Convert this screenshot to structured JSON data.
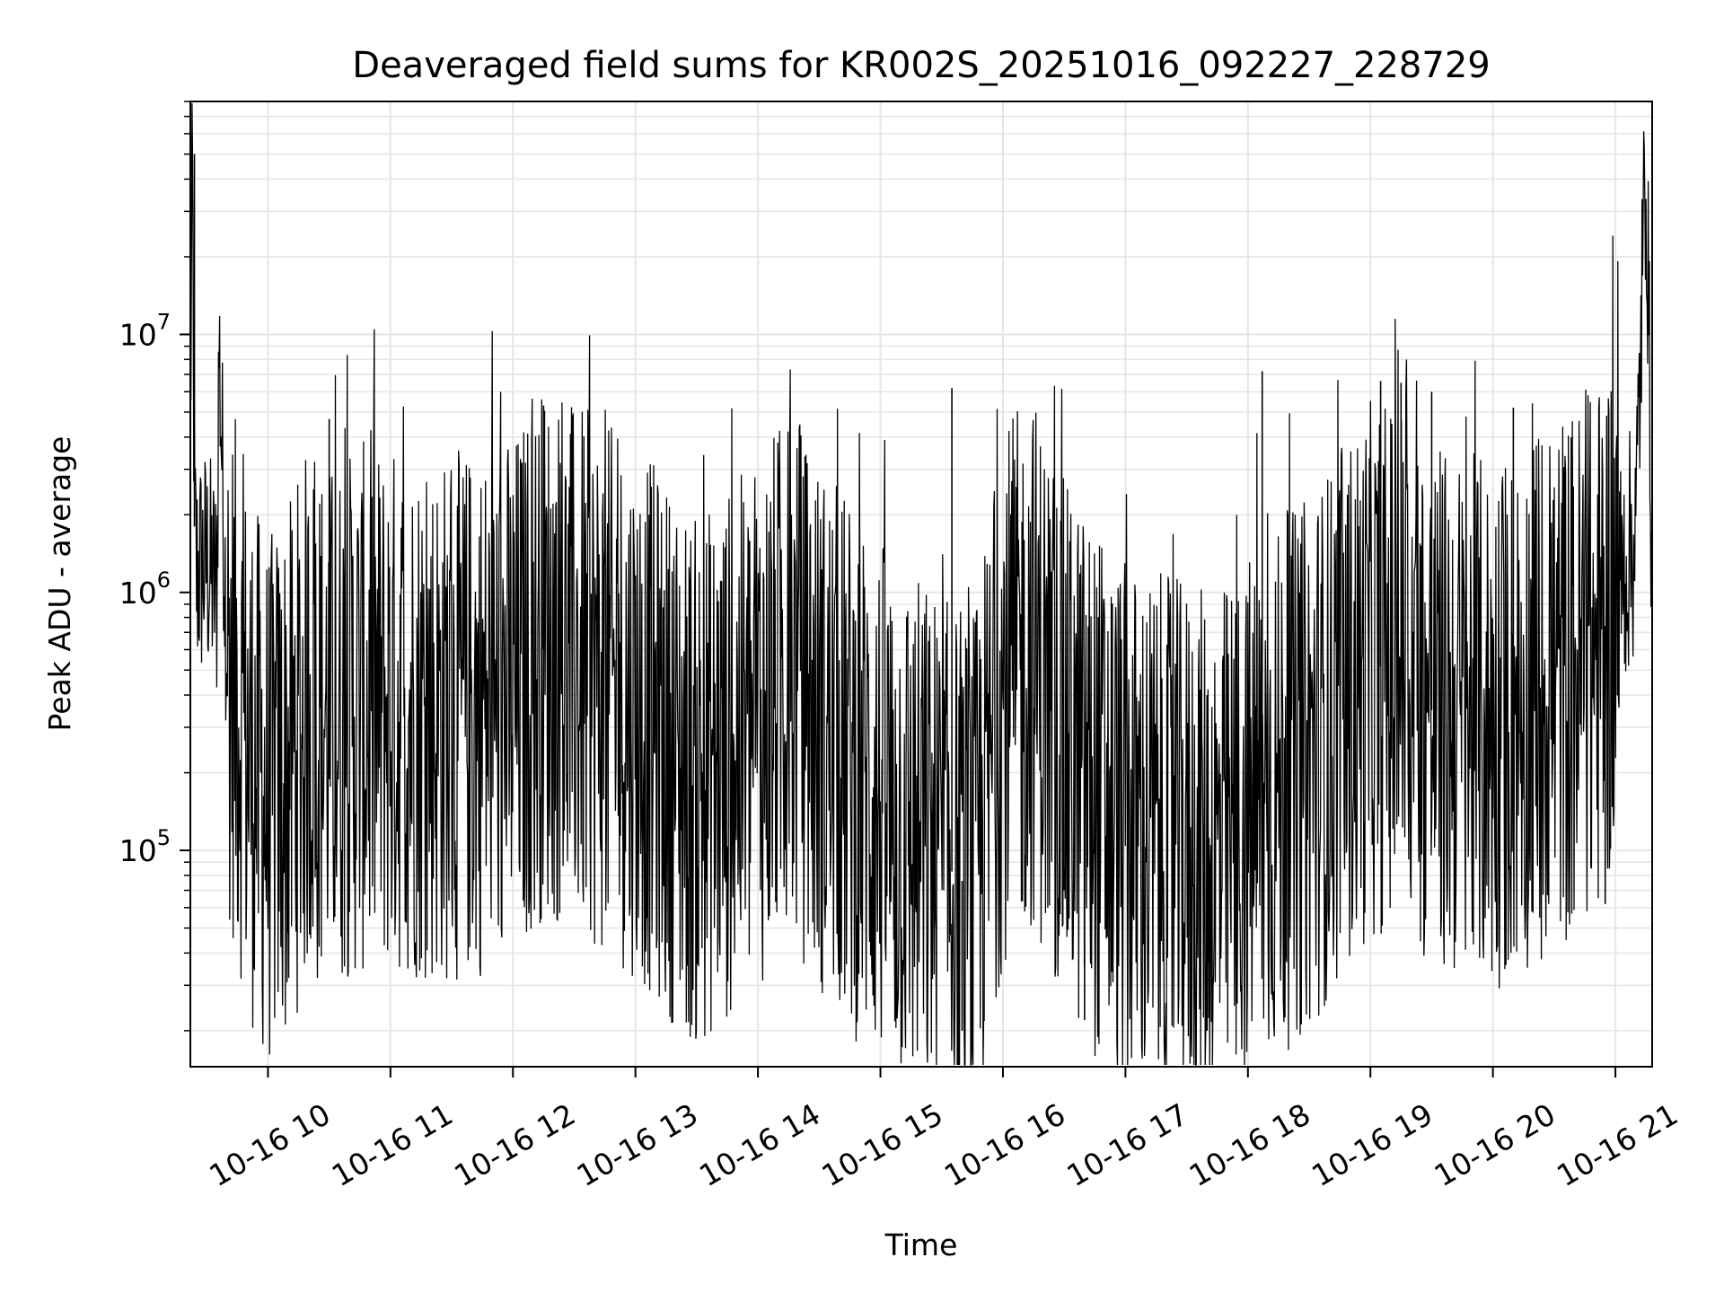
{
  "chart_data": {
    "type": "line",
    "title": "Deaveraged field sums for KR002S_20251016_092227_228729",
    "xlabel": "Time",
    "ylabel": "Peak ADU - average",
    "yscale": "log",
    "grid": true,
    "colors": {
      "line": "#000000",
      "grid": "#e6e6e6",
      "axes": "#000000",
      "background": "#ffffff"
    },
    "x_axis": {
      "range": [
        "2025-10-16 09:22",
        "2025-10-16 21:18"
      ],
      "ticks": [
        "10-16 10",
        "10-16 11",
        "10-16 12",
        "10-16 13",
        "10-16 14",
        "10-16 15",
        "10-16 16",
        "10-16 17",
        "10-16 18",
        "10-16 19",
        "10-16 20",
        "10-16 21"
      ]
    },
    "y_axis": {
      "range": [
        14500,
        80000000
      ],
      "ticks": [
        {
          "base": "10",
          "exp": "5",
          "value": 100000
        },
        {
          "base": "10",
          "exp": "6",
          "value": 1000000
        },
        {
          "base": "10",
          "exp": "7",
          "value": 10000000
        }
      ]
    },
    "series": [
      {
        "values_description_hidden": false,
        "points": [
          [
            "2025-10-16 09:22",
            4500000
          ],
          [
            "2025-10-16 09:23",
            45000000
          ],
          [
            "2025-10-16 09:24",
            1800000
          ],
          [
            "2025-10-16 09:25",
            1200000
          ],
          [
            "2025-10-16 09:30",
            1300000
          ],
          [
            "2025-10-16 09:35",
            1000000
          ],
          [
            "2025-10-16 09:36",
            9500000
          ],
          [
            "2025-10-16 09:40",
            600000
          ],
          [
            "2025-10-16 09:45",
            400000
          ],
          [
            "2025-10-16 09:50",
            250000
          ],
          [
            "2025-10-16 10:00",
            150000
          ],
          [
            "2025-10-16 10:10",
            200000
          ],
          [
            "2025-10-16 10:20",
            350000
          ],
          [
            "2025-10-16 10:30",
            300000
          ],
          [
            "2025-10-16 10:45",
            350000
          ],
          [
            "2025-10-16 11:00",
            350000
          ],
          [
            "2025-10-16 11:30",
            320000
          ],
          [
            "2025-10-16 12:00",
            380000
          ],
          [
            "2025-10-16 12:15",
            600000
          ],
          [
            "2025-10-16 12:30",
            500000
          ],
          [
            "2025-10-16 13:00",
            350000
          ],
          [
            "2025-10-16 13:30",
            180000
          ],
          [
            "2025-10-16 14:00",
            300000
          ],
          [
            "2025-10-16 14:15",
            500000
          ],
          [
            "2025-10-16 14:30",
            300000
          ],
          [
            "2025-10-16 15:00",
            150000
          ],
          [
            "2025-10-16 15:30",
            90000
          ],
          [
            "2025-10-16 15:45",
            70000
          ],
          [
            "2025-10-16 16:00",
            400000
          ],
          [
            "2025-10-16 16:15",
            550000
          ],
          [
            "2025-10-16 16:30",
            250000
          ],
          [
            "2025-10-16 17:00",
            120000
          ],
          [
            "2025-10-16 17:30",
            100000
          ],
          [
            "2025-10-16 17:45",
            90000
          ],
          [
            "2025-10-16 18:00",
            130000
          ],
          [
            "2025-10-16 18:30",
            220000
          ],
          [
            "2025-10-16 19:00",
            500000
          ],
          [
            "2025-10-16 19:15",
            550000
          ],
          [
            "2025-10-16 19:30",
            350000
          ],
          [
            "2025-10-16 20:00",
            300000
          ],
          [
            "2025-10-16 20:30",
            450000
          ],
          [
            "2025-10-16 20:50",
            550000
          ],
          [
            "2025-10-16 21:00",
            1000000
          ],
          [
            "2025-10-16 21:10",
            1700000
          ],
          [
            "2025-10-16 21:15",
            55000000
          ],
          [
            "2025-10-16 21:18",
            1200000
          ]
        ]
      }
    ],
    "notable_peaks": [
      [
        "2025-10-16 09:24",
        50000000
      ],
      [
        "2025-10-16 09:36",
        9500000
      ],
      [
        "2025-10-16 10:30",
        4700000
      ],
      [
        "2025-10-16 12:15",
        5300000
      ],
      [
        "2025-10-16 15:35",
        6200000
      ],
      [
        "2025-10-16 18:07",
        7200000
      ],
      [
        "2025-10-16 19:05",
        6600000
      ],
      [
        "2025-10-16 19:15",
        6500000
      ],
      [
        "2025-10-16 19:30",
        6000000
      ],
      [
        "2025-10-16 20:10",
        5200000
      ],
      [
        "2025-10-16 21:15",
        55000000
      ]
    ],
    "notable_troughs": [
      [
        "2025-10-16 10:10",
        48000
      ],
      [
        "2025-10-16 15:40",
        20000
      ],
      [
        "2025-10-16 16:40",
        22000
      ],
      [
        "2025-10-16 17:40",
        20000
      ],
      [
        "2025-10-16 20:55",
        62000
      ]
    ]
  }
}
